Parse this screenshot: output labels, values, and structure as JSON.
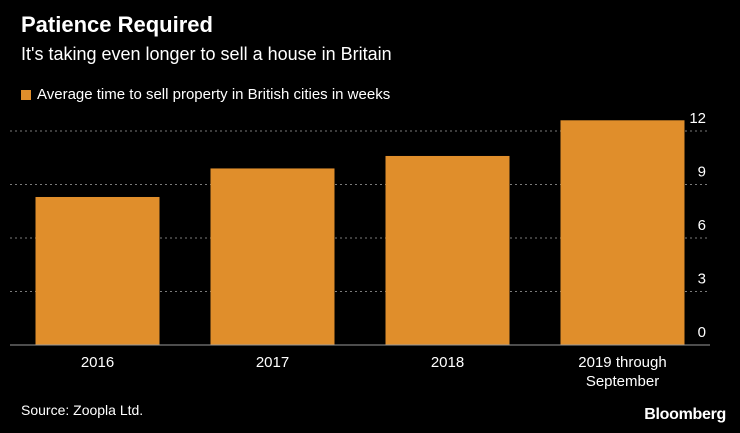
{
  "title": "Patience Required",
  "subtitle": "It's taking even longer to sell a house in Britain",
  "legend": {
    "label": "Average time to sell property in British cities in weeks"
  },
  "source": "Source: Zoopla Ltd.",
  "brand": "Bloomberg",
  "colors": {
    "bar": "#E08E2B",
    "background": "#000000",
    "text": "#FFFFFF",
    "gridline": "#7A7A7A"
  },
  "chart_data": {
    "type": "bar",
    "title": "Patience Required",
    "subtitle": "It's taking even longer to sell a house in Britain",
    "categories": [
      "2016",
      "2017",
      "2018",
      "2019 through September"
    ],
    "category_lines": [
      [
        "2016"
      ],
      [
        "2017"
      ],
      [
        "2018"
      ],
      [
        "2019 through",
        "September"
      ]
    ],
    "series": [
      {
        "name": "Average time to sell property in British cities in weeks",
        "values": [
          8.3,
          9.9,
          10.6,
          12.6
        ]
      }
    ],
    "xlabel": "",
    "ylabel": "",
    "ylim": [
      0,
      12
    ],
    "yticks": [
      0,
      3,
      6,
      9,
      12
    ],
    "y_axis_side": "right",
    "grid": true,
    "legend_position": "top-left"
  }
}
